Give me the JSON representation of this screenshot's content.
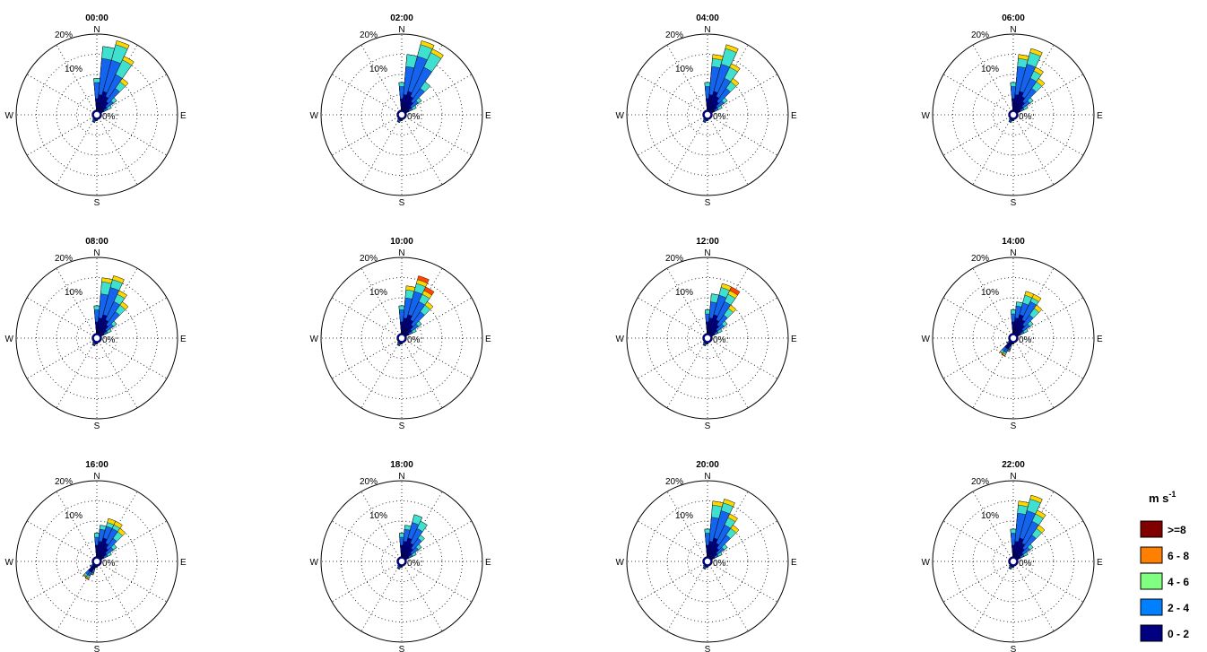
{
  "compass": {
    "north": "N",
    "east": "E",
    "south": "S",
    "west": "W"
  },
  "ring_labels": {
    "inner": "0%",
    "r10": "10%",
    "r20": "20%"
  },
  "speed_bins": [
    "0 - 2",
    "2 - 4",
    "4 - 6",
    "6 - 8",
    ">=8"
  ],
  "bin_colors": [
    "#00008B",
    "#1464F0",
    "#40E0D0",
    "#FFD700",
    "#FF4500",
    "#8B0000"
  ],
  "legend": {
    "unit_base": "m s",
    "unit_exp": "-1",
    "items": [
      {
        "label": ">=8",
        "color": "#800000"
      },
      {
        "label": "6 - 8",
        "color": "#FF8000"
      },
      {
        "label": "4 - 6",
        "color": "#80FF80"
      },
      {
        "label": "2 - 4",
        "color": "#0080FF"
      },
      {
        "label": "0 - 2",
        "color": "#000080"
      }
    ]
  },
  "chart_data": [
    {
      "type": "wind-rose",
      "title": "00:00",
      "rmax": 20,
      "ring_step": 5,
      "directions_deg": [
        0,
        10,
        20,
        30,
        40,
        50,
        60,
        180,
        190,
        200,
        210,
        220,
        230,
        240
      ],
      "cumulative_pct": [
        [
          4,
          8,
          9,
          9,
          9
        ],
        [
          5,
          14,
          17,
          17,
          17
        ],
        [
          6,
          14,
          18,
          19,
          19
        ],
        [
          5,
          11,
          15,
          16,
          16
        ],
        [
          4,
          8,
          10,
          11,
          11
        ],
        [
          3,
          5,
          6,
          6,
          6
        ],
        [
          2,
          3,
          4,
          4,
          4
        ],
        [
          1,
          1.5,
          1.5,
          1.5,
          1.5
        ],
        [
          1,
          1.5,
          1.5,
          1.5,
          1.5
        ],
        [
          1,
          2,
          2,
          2,
          2
        ],
        [
          1,
          2,
          2,
          2,
          2
        ],
        [
          1,
          1.5,
          1.5,
          1.5,
          1.5
        ],
        [
          0.5,
          1,
          1,
          1,
          1
        ],
        [
          0.5,
          1,
          1,
          1,
          1
        ]
      ]
    },
    {
      "type": "wind-rose",
      "title": "02:00",
      "rmax": 20,
      "ring_step": 5,
      "directions_deg": [
        0,
        10,
        20,
        30,
        40,
        50,
        60,
        180,
        190,
        200,
        210,
        220,
        230,
        240
      ],
      "cumulative_pct": [
        [
          4,
          7,
          8,
          8,
          8
        ],
        [
          5,
          12,
          15,
          15,
          15
        ],
        [
          6,
          15,
          18,
          19,
          19
        ],
        [
          5,
          13,
          17,
          18,
          18
        ],
        [
          4,
          8,
          10,
          10,
          10
        ],
        [
          3,
          5,
          6,
          6,
          6
        ],
        [
          2,
          3,
          4,
          4,
          4
        ],
        [
          1,
          1.5,
          1.5,
          1.5,
          1.5
        ],
        [
          1,
          1.5,
          1.5,
          1.5,
          1.5
        ],
        [
          1,
          2,
          2,
          2,
          2
        ],
        [
          1,
          2,
          2,
          2,
          2
        ],
        [
          1,
          1.5,
          1.5,
          1.5,
          1.5
        ],
        [
          0.5,
          1,
          1,
          1,
          1
        ],
        [
          0.5,
          1,
          1,
          1,
          1
        ]
      ]
    },
    {
      "type": "wind-rose",
      "title": "04:00",
      "rmax": 20,
      "ring_step": 5,
      "directions_deg": [
        0,
        10,
        20,
        30,
        40,
        50,
        60,
        180,
        190,
        200,
        210,
        220,
        230,
        240
      ],
      "cumulative_pct": [
        [
          4,
          7,
          8,
          8,
          8
        ],
        [
          5,
          12,
          14,
          15,
          15
        ],
        [
          6,
          13,
          17,
          18,
          18
        ],
        [
          5,
          10,
          13,
          14,
          14
        ],
        [
          4,
          8,
          10,
          11,
          11
        ],
        [
          3,
          5,
          6,
          6,
          6
        ],
        [
          2,
          3,
          4,
          4,
          4
        ],
        [
          1,
          1.5,
          1.5,
          1.5,
          1.5
        ],
        [
          1,
          1.5,
          1.5,
          1.5,
          1.5
        ],
        [
          1,
          2,
          2,
          2,
          2
        ],
        [
          1,
          2,
          2,
          2,
          2
        ],
        [
          1,
          1.5,
          1.5,
          1.5,
          1.5
        ],
        [
          0.5,
          1,
          1,
          1,
          1
        ],
        [
          0.5,
          1,
          1,
          1,
          1
        ]
      ]
    },
    {
      "type": "wind-rose",
      "title": "06:00",
      "rmax": 20,
      "ring_step": 5,
      "directions_deg": [
        0,
        10,
        20,
        30,
        40,
        50,
        60,
        180,
        190,
        200,
        210,
        220,
        230,
        240
      ],
      "cumulative_pct": [
        [
          4,
          7,
          8,
          8,
          8
        ],
        [
          5,
          12,
          14,
          15,
          15
        ],
        [
          6,
          13,
          16,
          17,
          17
        ],
        [
          5,
          10,
          12,
          13,
          13
        ],
        [
          4,
          8,
          10,
          11,
          11
        ],
        [
          3,
          5,
          6,
          6,
          6
        ],
        [
          2,
          3,
          4,
          4,
          4
        ],
        [
          1,
          1.5,
          1.5,
          1.5,
          1.5
        ],
        [
          1,
          1.5,
          1.5,
          1.5,
          1.5
        ],
        [
          1,
          2,
          2,
          2,
          2
        ],
        [
          1,
          2,
          2,
          2,
          2
        ],
        [
          1,
          1.5,
          1.5,
          1.5,
          1.5
        ],
        [
          0.5,
          1,
          1,
          1,
          1
        ],
        [
          0.5,
          1,
          1,
          1,
          1
        ]
      ]
    },
    {
      "type": "wind-rose",
      "title": "08:00",
      "rmax": 20,
      "ring_step": 5,
      "directions_deg": [
        0,
        10,
        20,
        30,
        40,
        50,
        60,
        180,
        190,
        200,
        210,
        220,
        230,
        240
      ],
      "cumulative_pct": [
        [
          4,
          7,
          8,
          8,
          8
        ],
        [
          5,
          11,
          14,
          15,
          15
        ],
        [
          6,
          13,
          15,
          16,
          16
        ],
        [
          5,
          10,
          12,
          13,
          13
        ],
        [
          4,
          8,
          10,
          11,
          11
        ],
        [
          3,
          5,
          6,
          6,
          6
        ],
        [
          2,
          3,
          4,
          4,
          4
        ],
        [
          1,
          1.5,
          1.5,
          1.5,
          1.5
        ],
        [
          1,
          1.5,
          1.5,
          1.5,
          1.5
        ],
        [
          1,
          2,
          2,
          2,
          2
        ],
        [
          1,
          2,
          2,
          2,
          2
        ],
        [
          1,
          1.5,
          1.5,
          1.5,
          1.5
        ],
        [
          0.5,
          1,
          1,
          1,
          1
        ],
        [
          0.5,
          1,
          1,
          1,
          1
        ]
      ]
    },
    {
      "type": "wind-rose",
      "title": "10:00",
      "rmax": 20,
      "ring_step": 5,
      "directions_deg": [
        0,
        10,
        20,
        30,
        40,
        50,
        60,
        180,
        190,
        200,
        210,
        220,
        230,
        240
      ],
      "cumulative_pct": [
        [
          4,
          7,
          8,
          8,
          8
        ],
        [
          5,
          10,
          12,
          13,
          13
        ],
        [
          6,
          12,
          14,
          15,
          16
        ],
        [
          5,
          10,
          12,
          13,
          14
        ],
        [
          4,
          8,
          10,
          11,
          11
        ],
        [
          3,
          5,
          6,
          6,
          6
        ],
        [
          2,
          3,
          4,
          4,
          4
        ],
        [
          1,
          1.5,
          1.5,
          1.5,
          1.5
        ],
        [
          1,
          1.5,
          1.5,
          1.5,
          1.5
        ],
        [
          1,
          2,
          2,
          2,
          2
        ],
        [
          1,
          2,
          2,
          2,
          2
        ],
        [
          1,
          1.5,
          1.5,
          1.5,
          1.5
        ],
        [
          0.5,
          1,
          1,
          1,
          1
        ],
        [
          0.5,
          1,
          1,
          1,
          1
        ]
      ]
    },
    {
      "type": "wind-rose",
      "title": "12:00",
      "rmax": 20,
      "ring_step": 5,
      "directions_deg": [
        0,
        10,
        20,
        30,
        40,
        50,
        60,
        180,
        190,
        200,
        210,
        220,
        230,
        240
      ],
      "cumulative_pct": [
        [
          4,
          6,
          7,
          7,
          7
        ],
        [
          5,
          9,
          11,
          11,
          11
        ],
        [
          6,
          11,
          13,
          14,
          14
        ],
        [
          5,
          10,
          12,
          13,
          14
        ],
        [
          4,
          7,
          9,
          10,
          10
        ],
        [
          3,
          5,
          6,
          6,
          6
        ],
        [
          2,
          3,
          4,
          4,
          4
        ],
        [
          1,
          1.5,
          1.5,
          1.5,
          1.5
        ],
        [
          1,
          1.5,
          1.5,
          1.5,
          1.5
        ],
        [
          1,
          2,
          2,
          2,
          2
        ],
        [
          1,
          2,
          2,
          2,
          2
        ],
        [
          1,
          1.5,
          1.5,
          1.5,
          1.5
        ],
        [
          0.5,
          1,
          1,
          1,
          1
        ],
        [
          0.5,
          1,
          1,
          1,
          1
        ]
      ]
    },
    {
      "type": "wind-rose",
      "title": "14:00",
      "rmax": 20,
      "ring_step": 5,
      "directions_deg": [
        0,
        10,
        20,
        30,
        40,
        50,
        60,
        180,
        190,
        200,
        210,
        220,
        230,
        240
      ],
      "cumulative_pct": [
        [
          4,
          6,
          7,
          7,
          7
        ],
        [
          5,
          8,
          9,
          9,
          9
        ],
        [
          6,
          9,
          11,
          12,
          12
        ],
        [
          5,
          10,
          11,
          12,
          12
        ],
        [
          4,
          7,
          9,
          10,
          10
        ],
        [
          3,
          5,
          6,
          6,
          6
        ],
        [
          2,
          3,
          4,
          4,
          4
        ],
        [
          1,
          1.5,
          1.5,
          1.5,
          1.5
        ],
        [
          1,
          1.5,
          1.5,
          1.5,
          1.5
        ],
        [
          2,
          3,
          3.2,
          3.4,
          3.5
        ],
        [
          3,
          4,
          4.5,
          4.8,
          5
        ],
        [
          3,
          4,
          4.5,
          4.7,
          4.8
        ],
        [
          1,
          2,
          2,
          2,
          2
        ],
        [
          0.5,
          1,
          1,
          1,
          1
        ]
      ]
    },
    {
      "type": "wind-rose",
      "title": "16:00",
      "rmax": 20,
      "ring_step": 5,
      "directions_deg": [
        0,
        10,
        20,
        30,
        40,
        50,
        60,
        180,
        190,
        200,
        210,
        220,
        230,
        240
      ],
      "cumulative_pct": [
        [
          4,
          6,
          7,
          7,
          7
        ],
        [
          5,
          8,
          9,
          9,
          9
        ],
        [
          6,
          9,
          10,
          11,
          11
        ],
        [
          5,
          9,
          10,
          11,
          11
        ],
        [
          4,
          7,
          9,
          10,
          10
        ],
        [
          3,
          5,
          6,
          6,
          6
        ],
        [
          2,
          3,
          4,
          4,
          4
        ],
        [
          1,
          1.5,
          1.5,
          1.5,
          1.5
        ],
        [
          1,
          1.5,
          1.5,
          1.5,
          1.5
        ],
        [
          2,
          3,
          3.2,
          3.4,
          3.5
        ],
        [
          3,
          4,
          4.5,
          4.8,
          5
        ],
        [
          3,
          4,
          4.5,
          4.7,
          4.8
        ],
        [
          1,
          2,
          2,
          2,
          2
        ],
        [
          0.5,
          1,
          1,
          1,
          1
        ]
      ]
    },
    {
      "type": "wind-rose",
      "title": "18:00",
      "rmax": 20,
      "ring_step": 5,
      "directions_deg": [
        0,
        10,
        20,
        30,
        40,
        50,
        60,
        180,
        190,
        200,
        210,
        220,
        230,
        240
      ],
      "cumulative_pct": [
        [
          4,
          6,
          7,
          7,
          7
        ],
        [
          5,
          8,
          9,
          9,
          9
        ],
        [
          6,
          10,
          12,
          12,
          12
        ],
        [
          5,
          9,
          11,
          11,
          11
        ],
        [
          4,
          7,
          8,
          8,
          8
        ],
        [
          3,
          5,
          6,
          6,
          6
        ],
        [
          2,
          3,
          4,
          4,
          4
        ],
        [
          1,
          1.5,
          1.5,
          1.5,
          1.5
        ],
        [
          1,
          1.5,
          1.5,
          1.5,
          1.5
        ],
        [
          1,
          2,
          2,
          2,
          2
        ],
        [
          1,
          2,
          2,
          2,
          2
        ],
        [
          1,
          1.5,
          1.5,
          1.5,
          1.5
        ],
        [
          0.5,
          1,
          1,
          1,
          1
        ],
        [
          0.5,
          1,
          1,
          1,
          1
        ]
      ]
    },
    {
      "type": "wind-rose",
      "title": "20:00",
      "rmax": 20,
      "ring_step": 5,
      "directions_deg": [
        0,
        10,
        20,
        30,
        40,
        50,
        60,
        180,
        190,
        200,
        210,
        220,
        230,
        240
      ],
      "cumulative_pct": [
        [
          4,
          7,
          8,
          8,
          8
        ],
        [
          5,
          11,
          14,
          15,
          15
        ],
        [
          6,
          13,
          15,
          16,
          16
        ],
        [
          5,
          10,
          12,
          13,
          13
        ],
        [
          4,
          8,
          10,
          11,
          11
        ],
        [
          3,
          5,
          6,
          6,
          6
        ],
        [
          2,
          3,
          4,
          4,
          4
        ],
        [
          1,
          1.5,
          1.5,
          1.5,
          1.5
        ],
        [
          1,
          1.5,
          1.5,
          1.5,
          1.5
        ],
        [
          1,
          2,
          2,
          2,
          2
        ],
        [
          1,
          2,
          2,
          2,
          2
        ],
        [
          1,
          1.5,
          1.5,
          1.5,
          1.5
        ],
        [
          0.5,
          1,
          1,
          1,
          1
        ],
        [
          0.5,
          1,
          1,
          1,
          1
        ]
      ]
    },
    {
      "type": "wind-rose",
      "title": "22:00",
      "rmax": 20,
      "ring_step": 5,
      "directions_deg": [
        0,
        10,
        20,
        30,
        40,
        50,
        60,
        180,
        190,
        200,
        210,
        220,
        230,
        240
      ],
      "cumulative_pct": [
        [
          4,
          7,
          8,
          8,
          8
        ],
        [
          5,
          12,
          14,
          15,
          15
        ],
        [
          6,
          13,
          16,
          17,
          17
        ],
        [
          5,
          11,
          13,
          14,
          14
        ],
        [
          4,
          8,
          10,
          11,
          11
        ],
        [
          3,
          5,
          6,
          6,
          6
        ],
        [
          2,
          3,
          4,
          4,
          4
        ],
        [
          1,
          1.5,
          1.5,
          1.5,
          1.5
        ],
        [
          1,
          1.5,
          1.5,
          1.5,
          1.5
        ],
        [
          1,
          2,
          2,
          2,
          2
        ],
        [
          1,
          2,
          2,
          2,
          2
        ],
        [
          1,
          1.5,
          1.5,
          1.5,
          1.5
        ],
        [
          0.5,
          1,
          1,
          1,
          1
        ],
        [
          0.5,
          1,
          1,
          1,
          1
        ]
      ]
    }
  ]
}
